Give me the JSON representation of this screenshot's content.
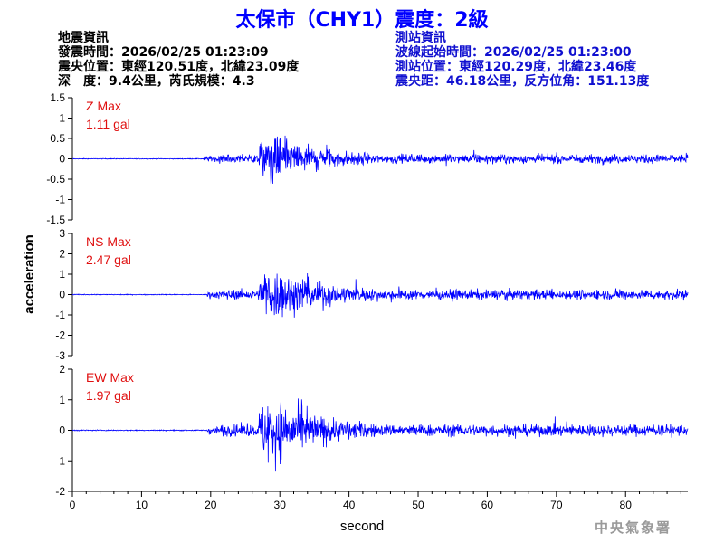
{
  "header": {
    "title": "太保市（CHY1）震度：2級"
  },
  "quake_info": {
    "heading": "地震資訊",
    "time": "發震時間：2026/02/25 01:23:09",
    "epicenter": "震央位置：東經120.51度，北緯23.09度",
    "depth_mag": "深　度：9.4公里，芮氏規模：4.3"
  },
  "station_info": {
    "heading": "測站資訊",
    "wave_start": "波線起始時間：2026/02/25 01:23:00",
    "location": "測站位置：東經120.29度，北緯23.46度",
    "distance": "震央距：46.18公里，反方位角：151.13度"
  },
  "footer": {
    "agency": "中央氣象署"
  },
  "colors": {
    "trace": "#0000ff",
    "max_label": "#e01010",
    "title": "#0000ff"
  },
  "chart_data": {
    "type": "line",
    "xlabel": "second",
    "ylabel": "acceleration",
    "xlim": [
      0,
      89
    ],
    "xticks": [
      "0",
      "10",
      "20",
      "30",
      "40",
      "50",
      "60",
      "70",
      "80"
    ],
    "grid": false,
    "panels": [
      {
        "component": "Z",
        "label_line1": "Z Max",
        "label_line2": "1.11 gal",
        "max": 1.11,
        "ylim": [
          -1.5,
          1.5
        ],
        "yticks": [
          "1.5",
          "1",
          "0.5",
          "0",
          "-0.5",
          "-1",
          "-1.5"
        ],
        "onset": 19.0,
        "s_arrival": 27.0
      },
      {
        "component": "NS",
        "label_line1": "NS Max",
        "label_line2": "2.47 gal",
        "max": 2.47,
        "ylim": [
          -3,
          3
        ],
        "yticks": [
          "3",
          "2",
          "1",
          "0",
          "-1",
          "-2",
          "-3"
        ],
        "onset": 19.5,
        "s_arrival": 27.0
      },
      {
        "component": "EW",
        "label_line1": "EW Max",
        "label_line2": "1.97 gal",
        "max": 1.97,
        "ylim": [
          -2,
          2
        ],
        "yticks": [
          "2",
          "1",
          "0",
          "-1",
          "-2"
        ],
        "onset": 19.5,
        "s_arrival": 27.0
      }
    ]
  }
}
